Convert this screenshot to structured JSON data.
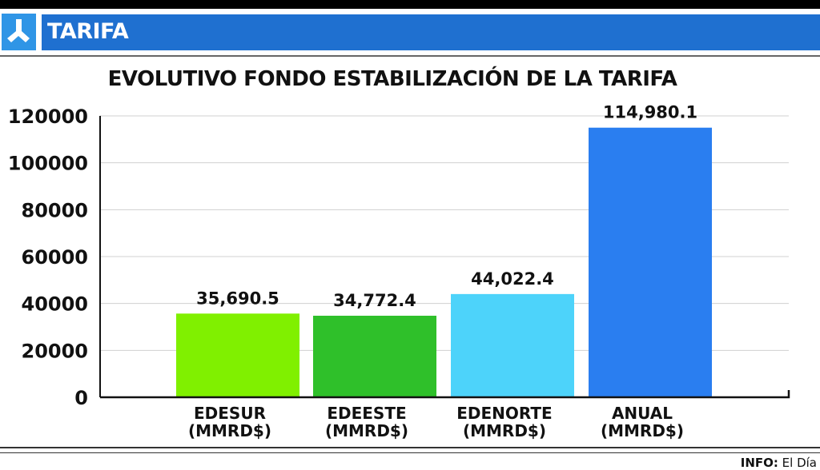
{
  "header": {
    "section": "TARIFA",
    "logo_icon": "utility-logo-icon"
  },
  "chart_data": {
    "type": "bar",
    "title": "EVOLUTIVO FONDO ESTABILIZACIÓN DE LA TARIFA",
    "categories": [
      [
        "EDESUR",
        "(MMRD$)"
      ],
      [
        "EDEESTE",
        "(MMRD$)"
      ],
      [
        "EDENORTE",
        "(MMRD$)"
      ],
      [
        "ANUAL",
        "(MMRD$)"
      ]
    ],
    "values": [
      35690.5,
      34772.4,
      44022.4,
      114980.1
    ],
    "value_labels": [
      "35,690.5",
      "34,772.4",
      "44,022.4",
      "114,980.1"
    ],
    "colors": [
      "#80f000",
      "#2fc02a",
      "#4dd3fa",
      "#2a7ef0"
    ],
    "yticks": [
      "0",
      "20000",
      "40000",
      "60000",
      "80000",
      "100000",
      "120000"
    ],
    "ylim": [
      0,
      120000
    ],
    "grid": true,
    "xlabel": "",
    "ylabel": ""
  },
  "footer": {
    "info_label": "INFO:",
    "info_source": "El Día"
  }
}
